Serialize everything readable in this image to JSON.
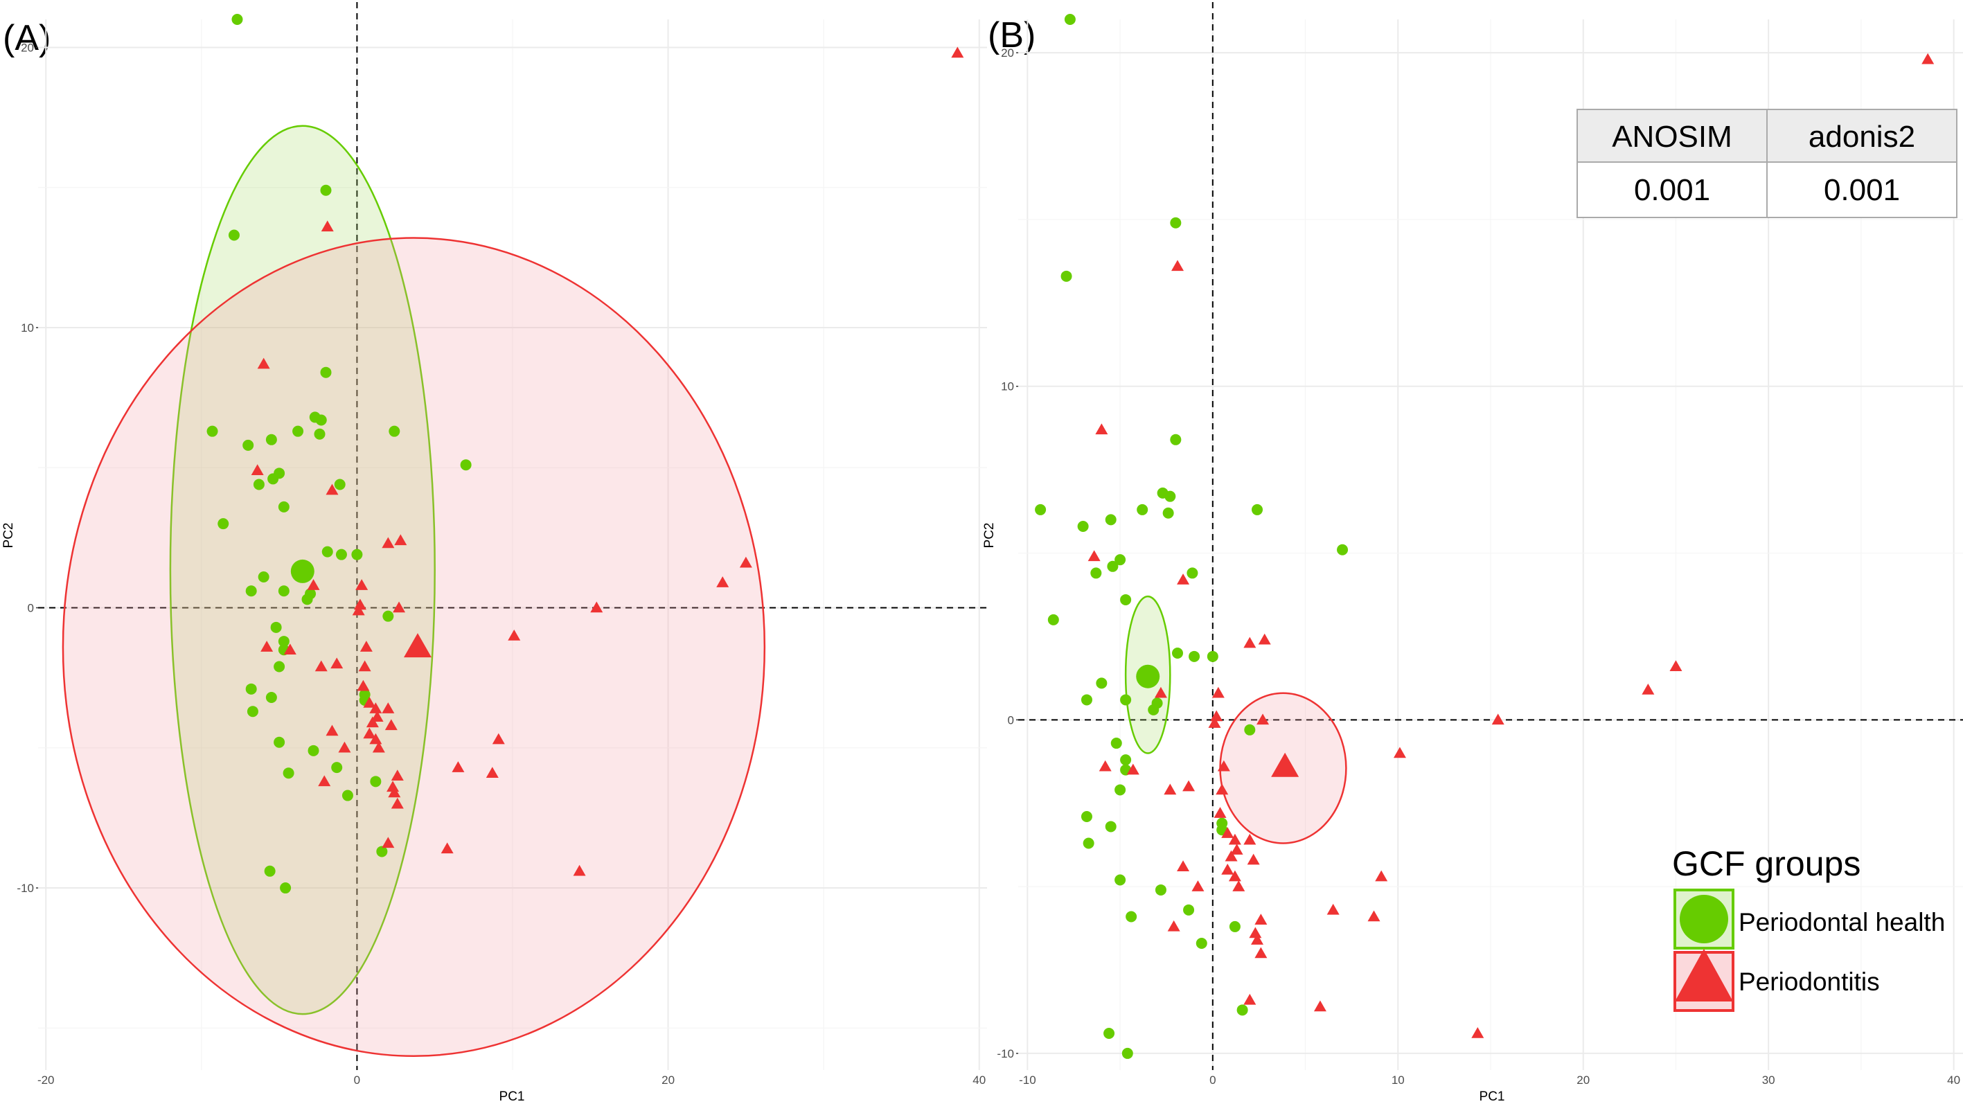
{
  "colors": {
    "health": "#66cc00",
    "periodontitis": "#ee3333",
    "health_fill": "#a6dd66",
    "periodontitis_fill": "#f4a0a8"
  },
  "panels": [
    {
      "label": "(A)",
      "xlabel": "PC1",
      "ylabel": "PC2"
    },
    {
      "label": "(B)",
      "xlabel": "PC1",
      "ylabel": "PC2"
    }
  ],
  "table": {
    "headers": [
      "ANOSIM",
      "adonis2"
    ],
    "values": [
      "0.001",
      "0.001"
    ]
  },
  "legend": {
    "title": "GCF groups",
    "items": [
      {
        "label": "Periodontal health",
        "shape": "circle"
      },
      {
        "label": "Periodontitis",
        "shape": "triangle"
      }
    ]
  },
  "chart_data": [
    {
      "type": "scatter",
      "panel": "(A)",
      "xlabel": "PC1",
      "ylabel": "PC2",
      "xlim": [
        -20.5,
        40.5
      ],
      "ylim": [
        -16.5,
        21.0
      ],
      "xticks": [
        -20,
        0,
        20,
        40
      ],
      "yticks": [
        -10,
        0,
        10,
        20
      ],
      "grid": true,
      "reference_lines": {
        "x": 0,
        "y": 0
      },
      "centroids": [
        {
          "group": "Periodontal health",
          "x": -3.5,
          "y": 1.3
        },
        {
          "group": "Periodontitis",
          "x": 3.9,
          "y": -1.4
        }
      ],
      "ellipses": [
        {
          "group": "Periodontal health",
          "x_range": [
            -12.0,
            5.0
          ],
          "y_range": [
            -14.5,
            17.2
          ]
        },
        {
          "group": "Periodontitis",
          "x_range": [
            -18.9,
            26.2
          ],
          "y_range": [
            -16.0,
            13.2
          ]
        }
      ]
    },
    {
      "type": "scatter",
      "panel": "(B)",
      "xlabel": "PC1",
      "ylabel": "PC2",
      "xlim": [
        -10.5,
        40.5
      ],
      "ylim": [
        -10.5,
        21.0
      ],
      "xticks": [
        -10,
        0,
        10,
        20,
        30,
        40
      ],
      "yticks": [
        -10,
        0,
        10,
        20
      ],
      "grid": true,
      "reference_lines": {
        "x": 0,
        "y": 0
      },
      "centroids": [
        {
          "group": "Periodontal health",
          "x": -3.5,
          "y": 1.3
        },
        {
          "group": "Periodontitis",
          "x": 3.9,
          "y": -1.4
        }
      ],
      "ellipses": [
        {
          "group": "Periodontal health",
          "x_range": [
            -4.7,
            -2.3
          ],
          "y_range": [
            -1.0,
            3.7
          ]
        },
        {
          "group": "Periodontitis",
          "x_range": [
            0.4,
            7.2
          ],
          "y_range": [
            -3.7,
            0.8
          ]
        }
      ],
      "series": [
        {
          "name": "Periodontal health",
          "points": [
            [
              -7.7,
              21.0
            ],
            [
              -2.0,
              14.9
            ],
            [
              -7.9,
              13.3
            ],
            [
              -2.0,
              8.4
            ],
            [
              -9.3,
              6.3
            ],
            [
              -2.3,
              6.7
            ],
            [
              -2.4,
              6.2
            ],
            [
              -5.5,
              6.0
            ],
            [
              -7.0,
              5.8
            ],
            [
              -2.7,
              6.8
            ],
            [
              -5.0,
              4.8
            ],
            [
              -6.3,
              4.4
            ],
            [
              -4.7,
              3.6
            ],
            [
              -5.4,
              4.6
            ],
            [
              -1.9,
              2.0
            ],
            [
              -3.5,
              1.3
            ],
            [
              -8.6,
              3.0
            ],
            [
              -6.0,
              1.1
            ],
            [
              -4.7,
              0.6
            ],
            [
              -6.8,
              0.6
            ],
            [
              -1.0,
              1.9
            ],
            [
              0.0,
              1.9
            ],
            [
              -3.2,
              0.3
            ],
            [
              -5.2,
              -0.7
            ],
            [
              -4.7,
              -1.2
            ],
            [
              -4.7,
              -1.5
            ],
            [
              -5.0,
              -2.1
            ],
            [
              -6.8,
              -2.9
            ],
            [
              -6.7,
              -3.7
            ],
            [
              -5.5,
              -3.2
            ],
            [
              -2.8,
              -5.1
            ],
            [
              -5.0,
              -4.8
            ],
            [
              -4.4,
              -5.9
            ],
            [
              -1.3,
              -5.7
            ],
            [
              -0.6,
              -6.7
            ],
            [
              -5.6,
              -9.4
            ],
            [
              -4.6,
              -10.0
            ],
            [
              2.4,
              6.3
            ],
            [
              7.0,
              5.1
            ],
            [
              2.0,
              -0.3
            ],
            [
              1.2,
              -6.2
            ],
            [
              -3.8,
              6.3
            ],
            [
              -3.0,
              0.5
            ],
            [
              0.5,
              -3.1
            ],
            [
              1.6,
              -8.7
            ],
            [
              -1.1,
              4.4
            ],
            [
              0.5,
              -3.3
            ]
          ]
        },
        {
          "name": "Periodontitis",
          "points": [
            [
              38.6,
              19.8
            ],
            [
              -1.9,
              13.6
            ],
            [
              -6.0,
              8.7
            ],
            [
              -6.4,
              4.9
            ],
            [
              -1.6,
              4.2
            ],
            [
              2.0,
              2.3
            ],
            [
              2.8,
              2.4
            ],
            [
              -2.8,
              0.8
            ],
            [
              0.3,
              0.8
            ],
            [
              0.2,
              0.1
            ],
            [
              0.1,
              -0.1
            ],
            [
              2.7,
              0.0
            ],
            [
              15.4,
              0.0
            ],
            [
              23.5,
              0.9
            ],
            [
              25.0,
              1.6
            ],
            [
              -4.3,
              -1.5
            ],
            [
              0.6,
              -1.4
            ],
            [
              -1.3,
              -2.0
            ],
            [
              -2.3,
              -2.1
            ],
            [
              0.5,
              -2.1
            ],
            [
              0.4,
              -2.8
            ],
            [
              0.8,
              -3.4
            ],
            [
              1.2,
              -3.6
            ],
            [
              1.3,
              -3.9
            ],
            [
              1.0,
              -4.1
            ],
            [
              2.0,
              -3.6
            ],
            [
              2.2,
              -4.2
            ],
            [
              10.1,
              -1.0
            ],
            [
              -1.6,
              -4.4
            ],
            [
              -0.8,
              -5.0
            ],
            [
              0.8,
              -4.5
            ],
            [
              1.2,
              -4.7
            ],
            [
              1.4,
              -5.0
            ],
            [
              9.1,
              -4.7
            ],
            [
              6.5,
              -5.7
            ],
            [
              8.7,
              -5.9
            ],
            [
              -2.1,
              -6.2
            ],
            [
              2.3,
              -6.4
            ],
            [
              2.6,
              -6.0
            ],
            [
              2.4,
              -6.6
            ],
            [
              2.6,
              -7.0
            ],
            [
              2.0,
              -8.4
            ],
            [
              5.8,
              -8.6
            ],
            [
              14.3,
              -9.4
            ],
            [
              -5.8,
              -1.4
            ],
            [
              3.9,
              -1.4
            ]
          ]
        }
      ]
    }
  ]
}
